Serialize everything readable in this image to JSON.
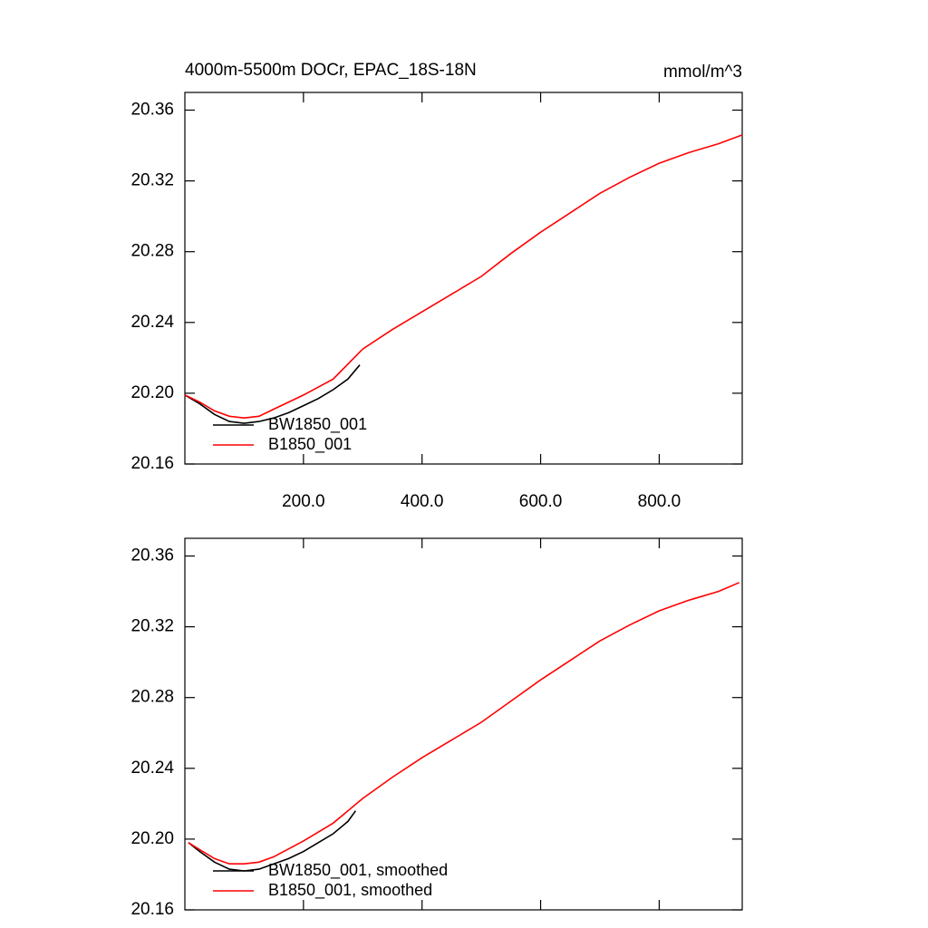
{
  "chart_data": [
    {
      "type": "line",
      "title": "4000m-5500m DOCr, EPAC_18S-18N",
      "units": "mmol/m^3",
      "xlim": [
        0,
        940
      ],
      "ylim": [
        20.16,
        20.37
      ],
      "xticks": [
        {
          "value": 200,
          "label": "200.0"
        },
        {
          "value": 400,
          "label": "400.0"
        },
        {
          "value": 600,
          "label": "600.0"
        },
        {
          "value": 800,
          "label": "800.0"
        }
      ],
      "yticks": [
        20.16,
        {
          "value": 20.2,
          "label": "20.20"
        },
        20.24,
        20.28,
        20.32,
        20.36
      ],
      "xtick_labels": true,
      "legend": "lower left",
      "series": [
        {
          "name": "BW1850_001",
          "color": "#000000",
          "x": [
            0,
            25,
            50,
            75,
            100,
            125,
            150,
            175,
            200,
            225,
            250,
            275,
            295
          ],
          "values": [
            20.199,
            20.194,
            20.188,
            20.184,
            20.183,
            20.184,
            20.186,
            20.189,
            20.193,
            20.197,
            20.202,
            20.208,
            20.216
          ]
        },
        {
          "name": "B1850_001",
          "color": "#ff0000",
          "x": [
            0,
            25,
            50,
            75,
            100,
            125,
            150,
            200,
            250,
            300,
            350,
            400,
            450,
            500,
            550,
            600,
            650,
            700,
            750,
            800,
            850,
            900,
            940
          ],
          "values": [
            20.199,
            20.195,
            20.19,
            20.187,
            20.186,
            20.187,
            20.191,
            20.199,
            20.208,
            20.225,
            20.236,
            20.246,
            20.256,
            20.266,
            20.279,
            20.291,
            20.302,
            20.313,
            20.322,
            20.33,
            20.336,
            20.341,
            20.346
          ]
        }
      ]
    },
    {
      "type": "line",
      "xlim": [
        0,
        940
      ],
      "ylim": [
        20.16,
        20.37
      ],
      "xticks": [
        200,
        400,
        600,
        800
      ],
      "yticks": [
        20.16,
        {
          "value": 20.2,
          "label": "20.20"
        },
        20.24,
        20.28,
        20.32,
        20.36
      ],
      "xtick_labels": false,
      "legend": "lower left",
      "series": [
        {
          "name": "BW1850_001, smoothed",
          "color": "#000000",
          "x": [
            6,
            25,
            50,
            75,
            100,
            125,
            150,
            175,
            200,
            225,
            250,
            275,
            288
          ],
          "values": [
            20.198,
            20.193,
            20.187,
            20.183,
            20.182,
            20.183,
            20.186,
            20.189,
            20.193,
            20.198,
            20.203,
            20.21,
            20.216
          ]
        },
        {
          "name": "B1850_001, smoothed",
          "color": "#ff0000",
          "x": [
            6,
            25,
            50,
            75,
            100,
            125,
            150,
            200,
            250,
            300,
            350,
            400,
            450,
            500,
            550,
            600,
            650,
            700,
            750,
            800,
            850,
            900,
            935
          ],
          "values": [
            20.198,
            20.194,
            20.189,
            20.186,
            20.186,
            20.187,
            20.19,
            20.199,
            20.209,
            20.223,
            20.235,
            20.246,
            20.256,
            20.266,
            20.278,
            20.29,
            20.301,
            20.312,
            20.321,
            20.329,
            20.335,
            20.34,
            20.345
          ]
        }
      ]
    }
  ]
}
